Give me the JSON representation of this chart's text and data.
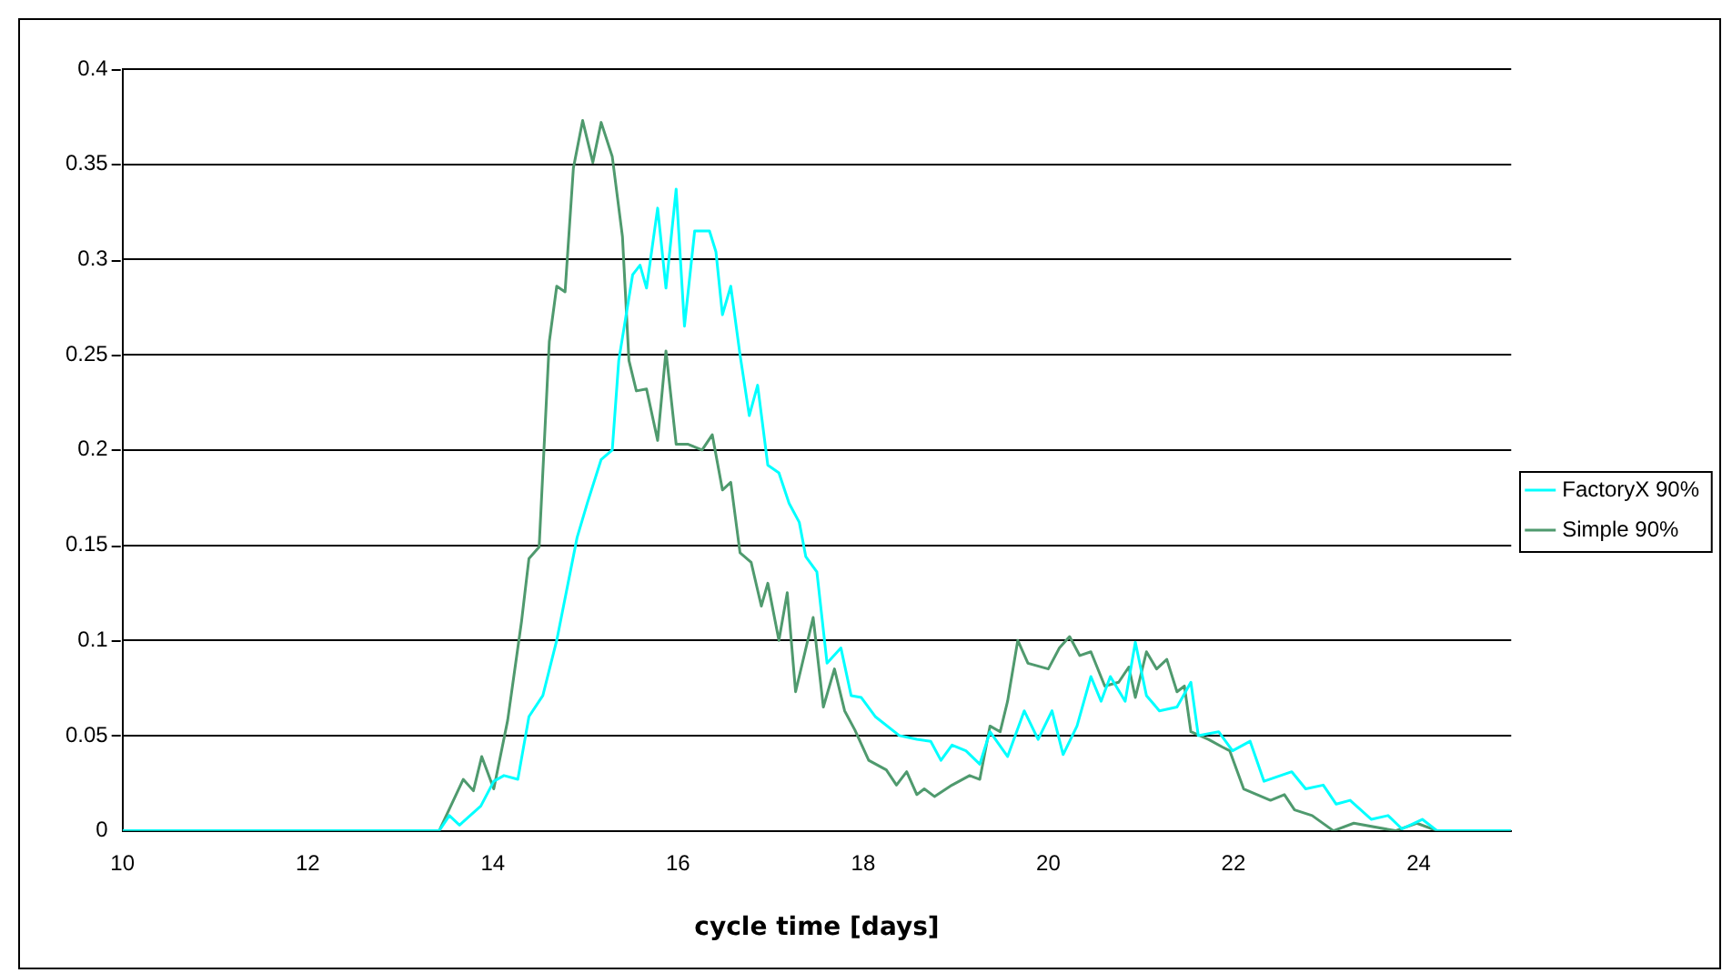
{
  "chart_data": {
    "type": "line",
    "xlabel": "cycle time [days]",
    "xlim": [
      10,
      25
    ],
    "xticks": [
      10,
      12,
      14,
      16,
      18,
      20,
      22,
      24
    ],
    "ylim": [
      0,
      0.4
    ],
    "yticks": [
      0,
      0.05,
      0.1,
      0.15,
      0.2,
      0.25,
      0.3,
      0.35,
      0.4
    ],
    "grid": "y",
    "legend": "right",
    "marker": "none",
    "line_style": "solid",
    "series": [
      {
        "name": "FactoryX 90%",
        "color": "#00ffff",
        "x": [
          10,
          13.42,
          13.53,
          13.64,
          13.87,
          14.01,
          14.12,
          14.27,
          14.39,
          14.54,
          14.69,
          14.91,
          15.02,
          15.17,
          15.29,
          15.36,
          15.51,
          15.59,
          15.66,
          15.78,
          15.87,
          15.98,
          16.07,
          16.18,
          16.34,
          16.41,
          16.48,
          16.57,
          16.67,
          16.77,
          16.86,
          16.97,
          17.09,
          17.2,
          17.31,
          17.38,
          17.5,
          17.61,
          17.76,
          17.87,
          17.98,
          18.13,
          18.39,
          18.58,
          18.73,
          18.84,
          18.96,
          19.11,
          19.26,
          19.37,
          19.56,
          19.74,
          19.89,
          20.04,
          20.16,
          20.31,
          20.46,
          20.57,
          20.67,
          20.83,
          20.94,
          21.06,
          21.2,
          21.39,
          21.54,
          21.62,
          21.84,
          21.99,
          22.18,
          22.33,
          22.63,
          22.78,
          22.97,
          23.11,
          23.26,
          23.49,
          23.67,
          23.82,
          24.04,
          24.2,
          24.88,
          25
        ],
        "values": [
          0,
          0,
          0.008,
          0.003,
          0.013,
          0.026,
          0.029,
          0.027,
          0.06,
          0.071,
          0.1,
          0.154,
          0.172,
          0.195,
          0.2,
          0.247,
          0.292,
          0.297,
          0.285,
          0.327,
          0.285,
          0.337,
          0.265,
          0.315,
          0.315,
          0.304,
          0.271,
          0.286,
          0.25,
          0.218,
          0.234,
          0.192,
          0.188,
          0.172,
          0.162,
          0.144,
          0.136,
          0.088,
          0.096,
          0.071,
          0.07,
          0.06,
          0.05,
          0.048,
          0.047,
          0.037,
          0.045,
          0.042,
          0.035,
          0.052,
          0.039,
          0.063,
          0.048,
          0.063,
          0.04,
          0.055,
          0.081,
          0.068,
          0.081,
          0.068,
          0.099,
          0.071,
          0.063,
          0.065,
          0.078,
          0.05,
          0.052,
          0.042,
          0.047,
          0.026,
          0.031,
          0.022,
          0.024,
          0.014,
          0.016,
          0.006,
          0.008,
          0.001,
          0.006,
          0,
          0,
          0
        ]
      },
      {
        "name": "Simple 90%",
        "color": "#4f9a6e",
        "x": [
          10,
          13.42,
          13.68,
          13.79,
          13.88,
          14.01,
          14.16,
          14.31,
          14.39,
          14.5,
          14.61,
          14.69,
          14.78,
          14.87,
          14.97,
          15.08,
          15.17,
          15.29,
          15.4,
          15.47,
          15.55,
          15.66,
          15.78,
          15.87,
          15.98,
          16.11,
          16.26,
          16.37,
          16.48,
          16.57,
          16.67,
          16.79,
          16.9,
          16.97,
          17.09,
          17.18,
          17.27,
          17.46,
          17.57,
          17.69,
          17.8,
          17.91,
          18.06,
          18.25,
          18.36,
          18.47,
          18.58,
          18.66,
          18.77,
          18.96,
          19.15,
          19.26,
          19.37,
          19.48,
          19.56,
          19.67,
          19.78,
          20,
          20.12,
          20.23,
          20.34,
          20.46,
          20.61,
          20.76,
          20.87,
          20.94,
          21.06,
          21.17,
          21.28,
          21.39,
          21.47,
          21.54,
          21.73,
          21.88,
          21.96,
          22.11,
          22.4,
          22.55,
          22.66,
          22.85,
          23.08,
          23.3,
          23.75,
          23.98,
          24.2,
          25
        ],
        "values": [
          0,
          0,
          0.027,
          0.021,
          0.039,
          0.022,
          0.058,
          0.11,
          0.143,
          0.149,
          0.257,
          0.286,
          0.283,
          0.348,
          0.373,
          0.351,
          0.372,
          0.354,
          0.312,
          0.247,
          0.231,
          0.232,
          0.205,
          0.252,
          0.203,
          0.203,
          0.2,
          0.208,
          0.179,
          0.183,
          0.146,
          0.141,
          0.118,
          0.13,
          0.1,
          0.125,
          0.073,
          0.112,
          0.065,
          0.085,
          0.063,
          0.053,
          0.037,
          0.032,
          0.024,
          0.031,
          0.019,
          0.022,
          0.018,
          0.024,
          0.029,
          0.027,
          0.055,
          0.052,
          0.068,
          0.1,
          0.088,
          0.085,
          0.096,
          0.102,
          0.092,
          0.094,
          0.076,
          0.078,
          0.086,
          0.07,
          0.094,
          0.085,
          0.09,
          0.073,
          0.076,
          0.052,
          0.048,
          0.044,
          0.042,
          0.022,
          0.016,
          0.019,
          0.011,
          0.008,
          0,
          0.004,
          0,
          0.004,
          0,
          0
        ]
      }
    ]
  }
}
